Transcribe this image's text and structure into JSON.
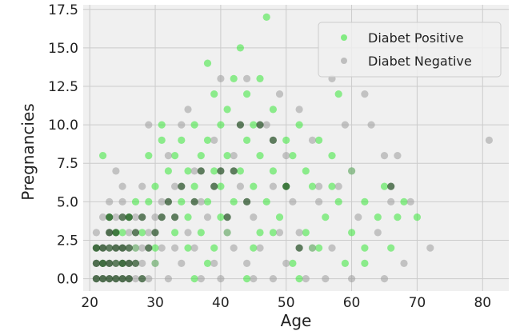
{
  "chart_data": {
    "type": "scatter",
    "title": "",
    "xlabel": "Age",
    "ylabel": "Pregnancies",
    "xlim": [
      19,
      84
    ],
    "ylim": [
      -0.8,
      17.8
    ],
    "xticks": [
      20,
      30,
      40,
      50,
      60,
      70,
      80
    ],
    "yticks": [
      "0.0",
      "2.5",
      "5.0",
      "7.5",
      "10.0",
      "12.5",
      "15.0",
      "17.5"
    ],
    "ytick_values": [
      0,
      2.5,
      5,
      7.5,
      10,
      12.5,
      15,
      17.5
    ],
    "grid": true,
    "legend_position": "top-right",
    "background_color": "#f0f0f0",
    "grid_color": "#cbcbcb",
    "series": [
      {
        "name": "Diabet Positive",
        "color": "#39e839",
        "points": [
          [
            21,
            2
          ],
          [
            22,
            1
          ],
          [
            22,
            8
          ],
          [
            23,
            4
          ],
          [
            24,
            3
          ],
          [
            25,
            1
          ],
          [
            25,
            3
          ],
          [
            26,
            4
          ],
          [
            27,
            5
          ],
          [
            28,
            3
          ],
          [
            29,
            5
          ],
          [
            29,
            8
          ],
          [
            30,
            2
          ],
          [
            30,
            6
          ],
          [
            31,
            9
          ],
          [
            31,
            10
          ],
          [
            32,
            7
          ],
          [
            33,
            3
          ],
          [
            33,
            8
          ],
          [
            34,
            5
          ],
          [
            34,
            9
          ],
          [
            35,
            4
          ],
          [
            35,
            7
          ],
          [
            36,
            6
          ],
          [
            36,
            10
          ],
          [
            37,
            3
          ],
          [
            37,
            8
          ],
          [
            38,
            5
          ],
          [
            38,
            9
          ],
          [
            38,
            14
          ],
          [
            39,
            2
          ],
          [
            39,
            7
          ],
          [
            39,
            12
          ],
          [
            40,
            4
          ],
          [
            40,
            6
          ],
          [
            40,
            10
          ],
          [
            41,
            8
          ],
          [
            41,
            11
          ],
          [
            42,
            5
          ],
          [
            42,
            13
          ],
          [
            43,
            7
          ],
          [
            43,
            15
          ],
          [
            44,
            9
          ],
          [
            44,
            12
          ],
          [
            45,
            6
          ],
          [
            45,
            10
          ],
          [
            46,
            3
          ],
          [
            46,
            8
          ],
          [
            46,
            13
          ],
          [
            47,
            17
          ],
          [
            47,
            5
          ],
          [
            48,
            7
          ],
          [
            48,
            11
          ],
          [
            49,
            4
          ],
          [
            50,
            6
          ],
          [
            50,
            9
          ],
          [
            51,
            1
          ],
          [
            51,
            8
          ],
          [
            52,
            10
          ],
          [
            53,
            3
          ],
          [
            53,
            7
          ],
          [
            54,
            2
          ],
          [
            54,
            6
          ],
          [
            55,
            9
          ],
          [
            56,
            4
          ],
          [
            57,
            8
          ],
          [
            58,
            5
          ],
          [
            58,
            12
          ],
          [
            59,
            1
          ],
          [
            60,
            3
          ],
          [
            60,
            7
          ],
          [
            62,
            5
          ],
          [
            62,
            2
          ],
          [
            64,
            4
          ],
          [
            65,
            6
          ],
          [
            66,
            2
          ],
          [
            67,
            4
          ],
          [
            68,
            5
          ],
          [
            70,
            4
          ],
          [
            36,
            0
          ],
          [
            44,
            0
          ],
          [
            52,
            0
          ],
          [
            30,
            1
          ],
          [
            38,
            1
          ],
          [
            45,
            2
          ],
          [
            55,
            2
          ],
          [
            41,
            3
          ],
          [
            48,
            3
          ],
          [
            27,
            2
          ],
          [
            35,
            2
          ],
          [
            57,
            6
          ],
          [
            62,
            1
          ]
        ]
      },
      {
        "name": "Diabet Negative",
        "color": "#9c9c9c",
        "points": [
          [
            21,
            0
          ],
          [
            21,
            1
          ],
          [
            21,
            2
          ],
          [
            21,
            3
          ],
          [
            22,
            0
          ],
          [
            22,
            1
          ],
          [
            22,
            2
          ],
          [
            22,
            4
          ],
          [
            23,
            0
          ],
          [
            23,
            1
          ],
          [
            23,
            3
          ],
          [
            23,
            5
          ],
          [
            24,
            0
          ],
          [
            24,
            2
          ],
          [
            24,
            4
          ],
          [
            24,
            7
          ],
          [
            25,
            0
          ],
          [
            25,
            1
          ],
          [
            25,
            2
          ],
          [
            25,
            5
          ],
          [
            25,
            6
          ],
          [
            26,
            0
          ],
          [
            26,
            1
          ],
          [
            26,
            3
          ],
          [
            27,
            0
          ],
          [
            27,
            2
          ],
          [
            27,
            4
          ],
          [
            28,
            1
          ],
          [
            28,
            2
          ],
          [
            28,
            6
          ],
          [
            29,
            0
          ],
          [
            29,
            3
          ],
          [
            29,
            10
          ],
          [
            30,
            1
          ],
          [
            30,
            4
          ],
          [
            31,
            2
          ],
          [
            31,
            5
          ],
          [
            32,
            0
          ],
          [
            32,
            8
          ],
          [
            33,
            2
          ],
          [
            33,
            6
          ],
          [
            34,
            1
          ],
          [
            34,
            10
          ],
          [
            35,
            3
          ],
          [
            35,
            11
          ],
          [
            36,
            2
          ],
          [
            36,
            7
          ],
          [
            37,
            0
          ],
          [
            37,
            5
          ],
          [
            38,
            4
          ],
          [
            39,
            1
          ],
          [
            39,
            9
          ],
          [
            40,
            0
          ],
          [
            40,
            13
          ],
          [
            41,
            3
          ],
          [
            42,
            2
          ],
          [
            42,
            8
          ],
          [
            43,
            6
          ],
          [
            44,
            1
          ],
          [
            44,
            13
          ],
          [
            45,
            4
          ],
          [
            46,
            2
          ],
          [
            47,
            10
          ],
          [
            48,
            0
          ],
          [
            48,
            6
          ],
          [
            49,
            3
          ],
          [
            49,
            12
          ],
          [
            50,
            1
          ],
          [
            50,
            8
          ],
          [
            51,
            5
          ],
          [
            52,
            3
          ],
          [
            52,
            11
          ],
          [
            53,
            0
          ],
          [
            54,
            2
          ],
          [
            54,
            9
          ],
          [
            55,
            5
          ],
          [
            56,
            0
          ],
          [
            57,
            13
          ],
          [
            57,
            2
          ],
          [
            58,
            6
          ],
          [
            59,
            10
          ],
          [
            60,
            7
          ],
          [
            61,
            4
          ],
          [
            62,
            12
          ],
          [
            63,
            10
          ],
          [
            64,
            3
          ],
          [
            65,
            8
          ],
          [
            66,
            5
          ],
          [
            67,
            8
          ],
          [
            69,
            5
          ],
          [
            72,
            2
          ],
          [
            81,
            9
          ],
          [
            55,
            6
          ],
          [
            60,
            0
          ],
          [
            65,
            0
          ],
          [
            45,
            0
          ],
          [
            68,
            1
          ]
        ]
      },
      {
        "name": "",
        "color": "#1f4a1f",
        "points": [
          [
            21,
            0
          ],
          [
            21,
            1
          ],
          [
            21,
            2
          ],
          [
            22,
            0
          ],
          [
            22,
            1
          ],
          [
            22,
            2
          ],
          [
            23,
            0
          ],
          [
            23,
            1
          ],
          [
            23,
            2
          ],
          [
            23,
            3
          ],
          [
            24,
            0
          ],
          [
            24,
            1
          ],
          [
            24,
            2
          ],
          [
            25,
            0
          ],
          [
            25,
            1
          ],
          [
            25,
            2
          ],
          [
            26,
            1
          ],
          [
            26,
            2
          ],
          [
            26,
            4
          ],
          [
            27,
            1
          ],
          [
            27,
            3
          ],
          [
            28,
            0
          ],
          [
            28,
            4
          ],
          [
            29,
            2
          ],
          [
            30,
            3
          ],
          [
            31,
            4
          ],
          [
            32,
            5
          ],
          [
            33,
            4
          ],
          [
            34,
            6
          ],
          [
            36,
            5
          ],
          [
            37,
            7
          ],
          [
            39,
            6
          ],
          [
            40,
            7
          ],
          [
            41,
            4
          ],
          [
            42,
            7
          ],
          [
            43,
            10
          ],
          [
            44,
            5
          ],
          [
            46,
            10
          ],
          [
            48,
            9
          ],
          [
            50,
            6
          ],
          [
            52,
            2
          ],
          [
            66,
            6
          ],
          [
            23,
            4
          ],
          [
            24,
            3
          ],
          [
            26,
            0
          ],
          [
            25,
            4
          ]
        ]
      }
    ]
  }
}
